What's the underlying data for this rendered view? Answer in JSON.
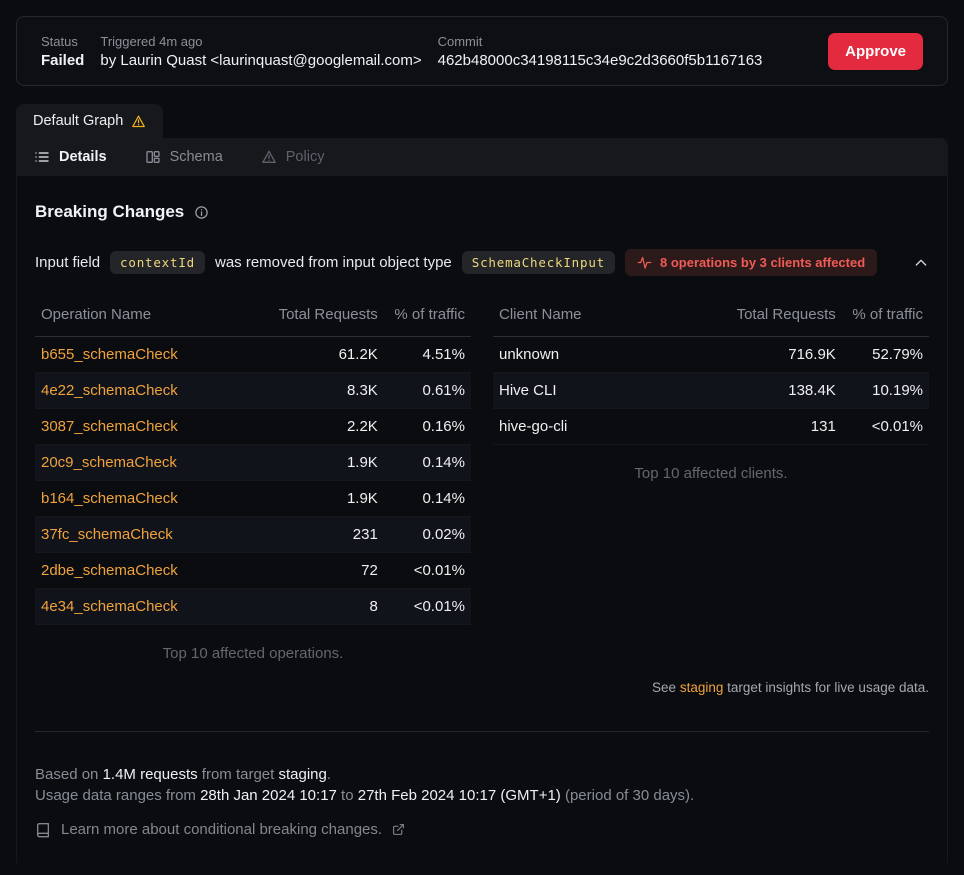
{
  "colors": {
    "approve_red": "#e42a3f",
    "link_orange": "#f0a23c",
    "code_yellow": "#eed77d",
    "badge_red": "#f15b57",
    "warning_yellow": "#f0b01f"
  },
  "header": {
    "status_label": "Status",
    "status_value": "Failed",
    "triggered_label": "Triggered 4m ago",
    "triggered_value": "by Laurin Quast <laurinquast@googlemail.com>",
    "commit_label": "Commit",
    "commit_value": "462b48000c34198115c34e9c2d3660f5b1167163",
    "approve_label": "Approve"
  },
  "tabs": {
    "graph_tab_label": "Default Graph",
    "items": [
      {
        "label": "Details",
        "icon": "list-icon"
      },
      {
        "label": "Schema",
        "icon": "columns-icon"
      },
      {
        "label": "Policy",
        "icon": "warning-icon"
      }
    ]
  },
  "breaking": {
    "title": "Breaking Changes",
    "change": {
      "prefix": "Input field",
      "code_field": "contextId",
      "middle": "was removed from input object type",
      "code_type": "SchemaCheckInput",
      "badge": "8 operations by 3 clients affected"
    }
  },
  "operations_table": {
    "headers": [
      "Operation Name",
      "Total Requests",
      "% of traffic"
    ],
    "rows": [
      [
        "b655_schemaCheck",
        "61.2K",
        "4.51%"
      ],
      [
        "4e22_schemaCheck",
        "8.3K",
        "0.61%"
      ],
      [
        "3087_schemaCheck",
        "2.2K",
        "0.16%"
      ],
      [
        "20c9_schemaCheck",
        "1.9K",
        "0.14%"
      ],
      [
        "b164_schemaCheck",
        "1.9K",
        "0.14%"
      ],
      [
        "37fc_schemaCheck",
        "231",
        "0.02%"
      ],
      [
        "2dbe_schemaCheck",
        "72",
        "<0.01%"
      ],
      [
        "4e34_schemaCheck",
        "8",
        "<0.01%"
      ]
    ],
    "caption": "Top 10 affected operations."
  },
  "clients_table": {
    "headers": [
      "Client Name",
      "Total Requests",
      "% of traffic"
    ],
    "rows": [
      [
        "unknown",
        "716.9K",
        "52.79%"
      ],
      [
        "Hive CLI",
        "138.4K",
        "10.19%"
      ],
      [
        "hive-go-cli",
        "131",
        "<0.01%"
      ]
    ],
    "caption": "Top 10 affected clients."
  },
  "see_note": {
    "prefix": "See ",
    "link": "staging",
    "suffix": " target insights for live usage data."
  },
  "footer": {
    "line1": {
      "t1": "Based on ",
      "b1": "1.4M requests",
      "t2": " from target ",
      "b2": "staging",
      "t3": "."
    },
    "line2": {
      "t1": "Usage data ranges from ",
      "b1": "28th Jan 2024 10:17",
      "t2": " to ",
      "b2": "27th Feb 2024 10:17 (GMT+1)",
      "t3": " (period of 30 days)."
    },
    "learn_more": "Learn more about conditional breaking changes."
  }
}
